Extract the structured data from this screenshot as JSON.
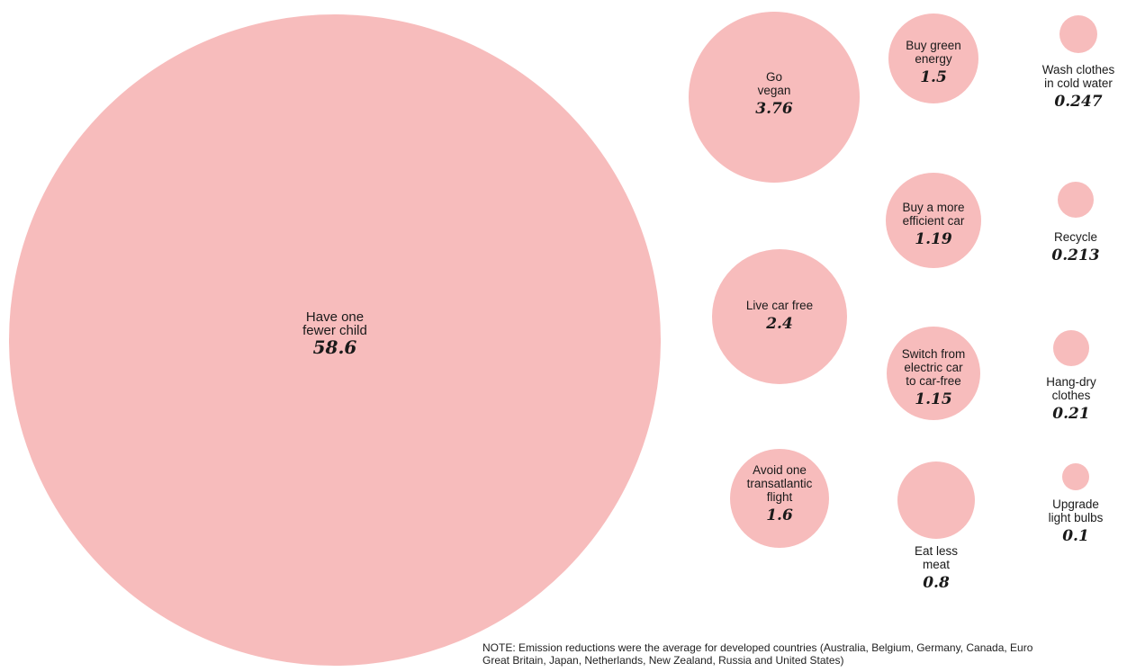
{
  "chart_data": {
    "type": "bubble",
    "unit_description": "",
    "items": [
      {
        "id": "one-fewer-child",
        "label_lines": [
          "Have one",
          "fewer child"
        ],
        "value_text": "58.6",
        "value": 58.6
      },
      {
        "id": "go-vegan",
        "label_lines": [
          "Go",
          "vegan"
        ],
        "value_text": "3.76",
        "value": 3.76
      },
      {
        "id": "live-car-free",
        "label_lines": [
          "Live car free"
        ],
        "value_text": "2.4",
        "value": 2.4
      },
      {
        "id": "avoid-flight",
        "label_lines": [
          "Avoid one",
          "transatlantic",
          "flight"
        ],
        "value_text": "1.6",
        "value": 1.6
      },
      {
        "id": "buy-green-energy",
        "label_lines": [
          "Buy green",
          "energy"
        ],
        "value_text": "1.5",
        "value": 1.5
      },
      {
        "id": "efficient-car",
        "label_lines": [
          "Buy a more",
          "efficient car"
        ],
        "value_text": "1.19",
        "value": 1.19
      },
      {
        "id": "electric-to-car-free",
        "label_lines": [
          "Switch from",
          "electric car",
          "to car-free"
        ],
        "value_text": "1.15",
        "value": 1.15
      },
      {
        "id": "eat-less-meat",
        "label_lines": [
          "Eat less",
          "meat"
        ],
        "value_text": "0.8",
        "value": 0.8
      },
      {
        "id": "wash-cold",
        "label_lines": [
          "Wash clothes",
          "in cold water"
        ],
        "value_text": "0.247",
        "value": 0.247
      },
      {
        "id": "recycle",
        "label_lines": [
          "Recycle"
        ],
        "value_text": "0.213",
        "value": 0.213
      },
      {
        "id": "hang-dry",
        "label_lines": [
          "Hang-dry",
          "clothes"
        ],
        "value_text": "0.21",
        "value": 0.21
      },
      {
        "id": "upgrade-bulbs",
        "label_lines": [
          "Upgrade",
          "light bulbs"
        ],
        "value_text": "0.1",
        "value": 0.1
      }
    ],
    "note": "NOTE: Emission reductions were the average for developed countries (Australia, Belgium, Germany, Canada, Euro\nGreat Britain, Japan, Netherlands, New Zealand, Russia and United States)"
  },
  "colors": {
    "bubble": "#f7bcbc",
    "text": "#1a1a1a",
    "background": "#ffffff"
  }
}
